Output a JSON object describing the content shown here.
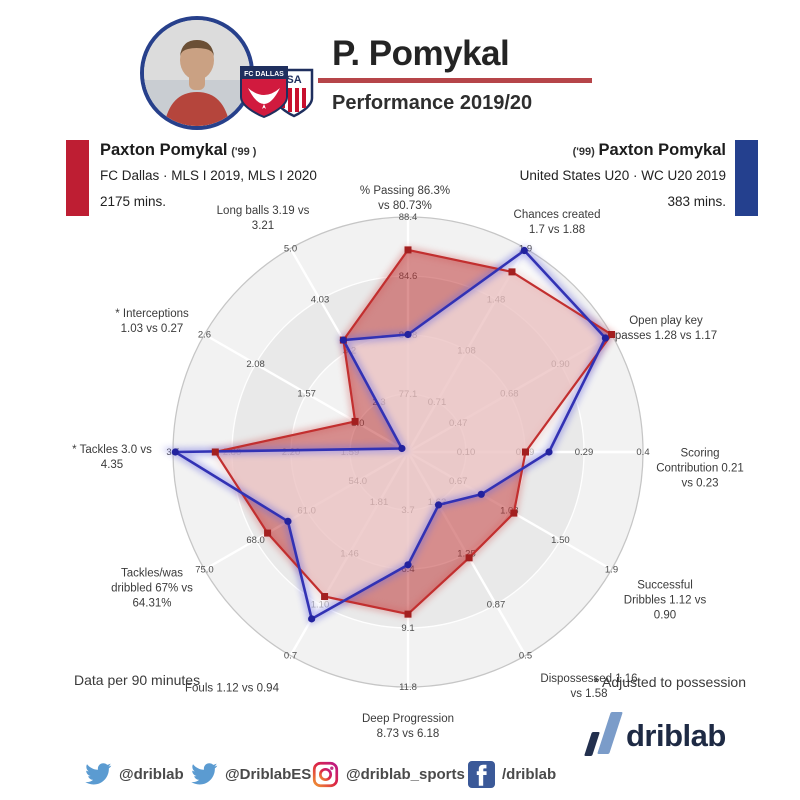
{
  "header": {
    "title": "P. Pomykal",
    "subtitle": "Performance 2019/20"
  },
  "player_left": {
    "name": "Paxton Pomykal",
    "birth_year": "('99 )",
    "team_line": "FC Dallas · MLS I 2019, MLS I 2020",
    "minutes": "2175 mins.",
    "color": "#be1e33"
  },
  "player_right": {
    "birth_year": "('99)",
    "name": "Paxton Pomykal",
    "team_line": "United States U20 · WC U20 2019",
    "minutes": "383 mins.",
    "color": "#24408e"
  },
  "chart_data": {
    "type": "radar",
    "rings": 4,
    "legend_position": "none",
    "grid": "concentric-bands",
    "series": [
      {
        "name": "FC Dallas · MLS 2019/20",
        "color": "#c22f2f",
        "fill": "rgba(188,48,48,0.52)",
        "marker": "square"
      },
      {
        "name": "United States U20 · WC U20 2019",
        "color": "#3232b4",
        "fill": "rgba(255,255,255,0.55)",
        "marker": "circle"
      }
    ],
    "axes": [
      {
        "id": "passing",
        "label_lines": [
          "% Passing 86.3%",
          "vs 80.73%"
        ],
        "red": "86.3%",
        "blue": "80.73%",
        "ticks": [
          "77.1",
          "80.8",
          "84.6",
          "88.4"
        ],
        "red_norm": 0.86,
        "blue_norm": 0.5
      },
      {
        "id": "chances-created",
        "label_lines": [
          "Chances created",
          "1.7 vs 1.88"
        ],
        "red": "1.7",
        "blue": "1.88",
        "ticks": [
          "0.71",
          "1.08",
          "1.48",
          "1.9"
        ],
        "red_norm": 0.885,
        "blue_norm": 0.99
      },
      {
        "id": "open-play-key-passes",
        "label_lines": [
          "Open play key",
          "passes 1.28 vs 1.17"
        ],
        "red": "1.28",
        "blue": "1.17",
        "ticks": [
          "0.47",
          "0.68",
          "0.90",
          ""
        ],
        "red_norm": 1.0,
        "blue_norm": 0.97
      },
      {
        "id": "scoring-contribution",
        "label_lines": [
          "Scoring",
          "Contribution 0.21",
          "vs 0.23"
        ],
        "red": "0.21",
        "blue": "0.23",
        "ticks": [
          "0.10",
          "0.19",
          "0.29",
          "0.4"
        ],
        "red_norm": 0.5,
        "blue_norm": 0.6
      },
      {
        "id": "successful-dribbles",
        "label_lines": [
          "Successful",
          "Dribbles 1.12 vs",
          "0.90"
        ],
        "red": "1.12",
        "blue": "0.90",
        "ticks": [
          "0.67",
          "1.08",
          "1.50",
          "1.9"
        ],
        "red_norm": 0.52,
        "blue_norm": 0.36
      },
      {
        "id": "dispossessed",
        "label_lines": [
          "Dispossessed 1.16",
          "vs 1.58"
        ],
        "red": "1.16",
        "blue": "1.58",
        "ticks": [
          "1.63",
          "1.25",
          "0.87",
          "0.5"
        ],
        "red_norm": 0.52,
        "blue_norm": 0.26
      },
      {
        "id": "deep-progression",
        "label_lines": [
          "Deep Progression",
          "8.73 vs 6.18"
        ],
        "red": "8.73",
        "blue": "6.18",
        "ticks": [
          "3.7",
          "6.4",
          "9.1",
          "11.8"
        ],
        "red_norm": 0.69,
        "blue_norm": 0.48
      },
      {
        "id": "fouls",
        "label_lines": [
          "Fouls 1.12 vs 0.94"
        ],
        "red": "1.12",
        "blue": "0.94",
        "ticks": [
          "1.81",
          "1.46",
          "1.10",
          "0.7"
        ],
        "red_norm": 0.71,
        "blue_norm": 0.82
      },
      {
        "id": "tackles-was-dribbled",
        "label_lines": [
          "Tackles/was",
          "dribbled 67% vs",
          "64.31%"
        ],
        "red": "67%",
        "blue": "64.31%",
        "ticks": [
          "54.0",
          "61.0",
          "68.0",
          "75.0"
        ],
        "red_norm": 0.69,
        "blue_norm": 0.59
      },
      {
        "id": "tackles",
        "label_lines": [
          "* Tackles 3.0 vs",
          "4.35"
        ],
        "red": "3.0",
        "blue": "4.35",
        "ticks": [
          "1.59",
          "2.20",
          "2.80",
          "3.5"
        ],
        "red_norm": 0.82,
        "blue_norm": 0.99
      },
      {
        "id": "interceptions",
        "label_lines": [
          "* Interceptions",
          "1.03 vs 0.27"
        ],
        "red": "1.03",
        "blue": "0.27",
        "ticks": [
          "1.0",
          "1.57",
          "2.08",
          "2.6"
        ],
        "red_norm": 0.26,
        "blue_norm": 0.03
      },
      {
        "id": "long-balls",
        "label_lines": [
          "Long balls 3.19 vs",
          "3.21"
        ],
        "red": "3.19",
        "blue": "3.21",
        "ticks": [
          "2.3",
          "3.2",
          "4.03",
          "5.0"
        ],
        "red_norm": 0.55,
        "blue_norm": 0.55
      }
    ]
  },
  "notes": {
    "left": "Data per 90 minutes",
    "right": "* Adjusted to possession"
  },
  "branding": {
    "logo_text": "driblab"
  },
  "social": [
    {
      "network": "twitter",
      "handle": "@driblab"
    },
    {
      "network": "twitter",
      "handle": "@DriblabES"
    },
    {
      "network": "instagram",
      "handle": "@driblab_sports"
    },
    {
      "network": "facebook",
      "handle": "/driblab"
    }
  ]
}
